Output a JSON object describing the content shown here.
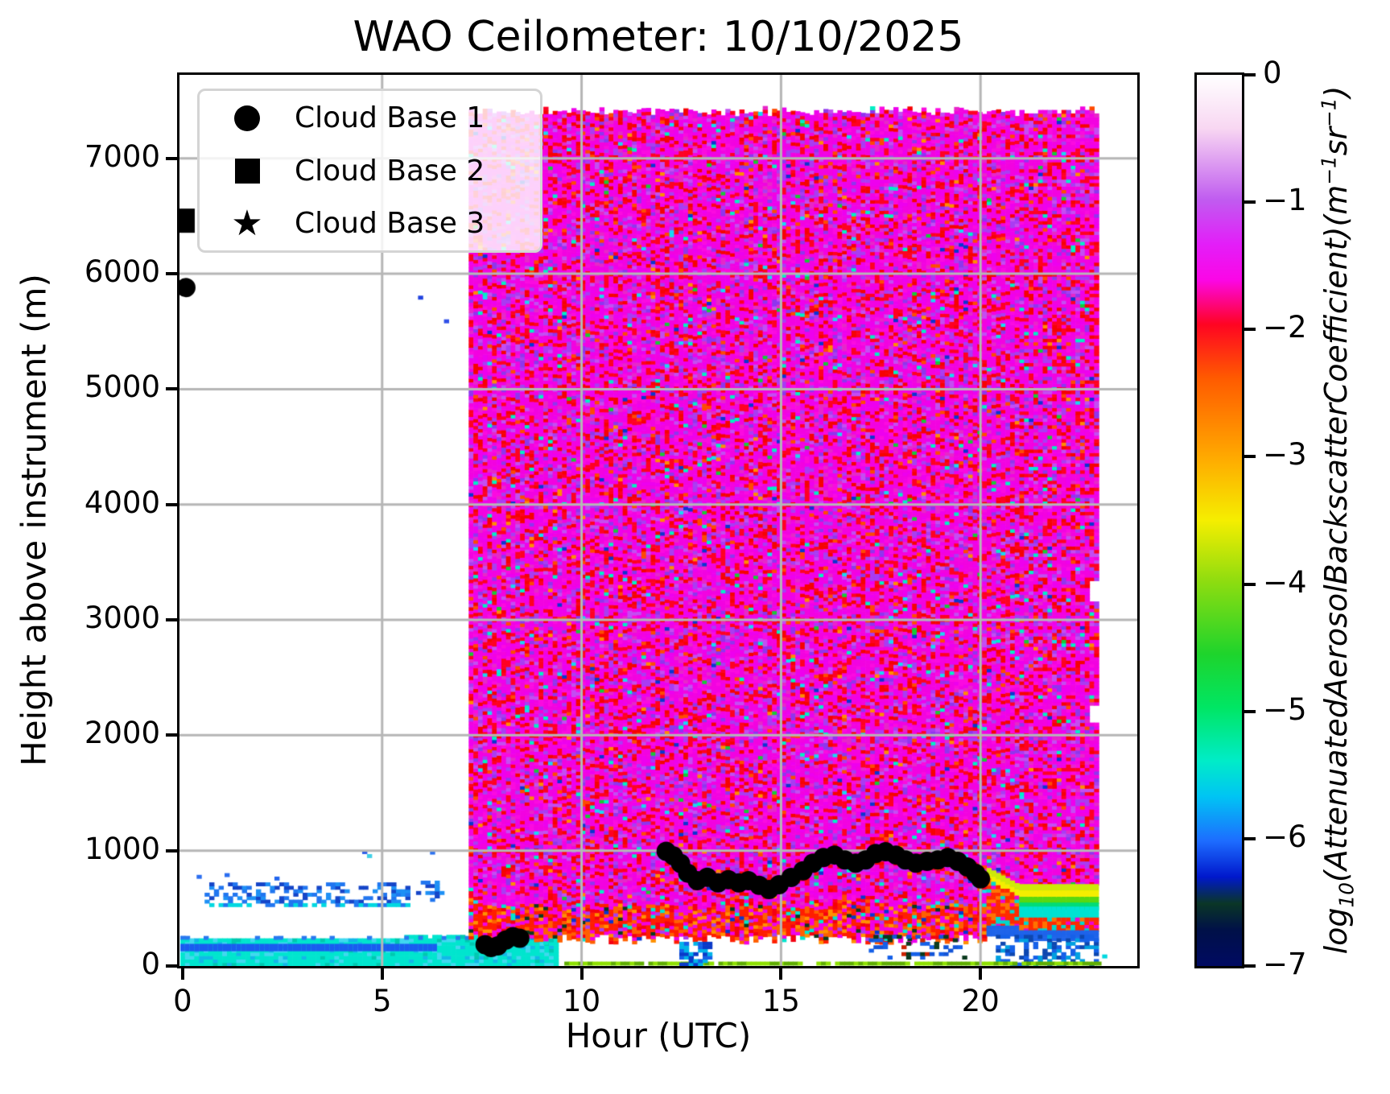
{
  "chart_data": {
    "type": "heatmap",
    "title": "WAO Ceilometer: 10/10/2025",
    "axes": {
      "xlabel": "Hour (UTC)",
      "ylabel": "Height above instrument (m)",
      "x_ticks": [
        0,
        5,
        10,
        15,
        20
      ],
      "y_ticks": [
        0,
        1000,
        2000,
        3000,
        4000,
        5000,
        6000,
        7000
      ],
      "xlim": [
        -0.08,
        23.93
      ],
      "ylim": [
        0,
        7724
      ],
      "grid": true,
      "grid_color": "#b6b6b6",
      "spine_color": "#000000"
    },
    "legend": {
      "position": "upper left",
      "star_glyph": "★",
      "items": [
        {
          "marker": "circle",
          "label": "Cloud Base 1"
        },
        {
          "marker": "square",
          "label": "Cloud Base 2"
        },
        {
          "marker": "star",
          "label": "Cloud Base 3"
        }
      ]
    },
    "colorbar": {
      "vmin": -7,
      "vmax": 0,
      "ticks": [
        "0",
        "−1",
        "−2",
        "−3",
        "−4",
        "−5",
        "−6",
        "−7"
      ],
      "tick_values": [
        0,
        -1,
        -2,
        -3,
        -4,
        -5,
        -6,
        -7
      ],
      "gradient": [
        [
          "0%",
          "#ffffff"
        ],
        [
          "6%",
          "#f8d7f2"
        ],
        [
          "14%",
          "#c05cf0"
        ],
        [
          "19%",
          "#e31ef8"
        ],
        [
          "23%",
          "#fb06e6"
        ],
        [
          "28%",
          "#ff0422"
        ],
        [
          "34%",
          "#ff5a00"
        ],
        [
          "43%",
          "#ffaa00"
        ],
        [
          "50%",
          "#f5ee00"
        ],
        [
          "57%",
          "#8cdc10"
        ],
        [
          "65%",
          "#1ed42c"
        ],
        [
          "71%",
          "#00e664"
        ],
        [
          "77%",
          "#00ecc8"
        ],
        [
          "81%",
          "#00c4f4"
        ],
        [
          "86%",
          "#1d6cff"
        ],
        [
          "90%",
          "#0018cc"
        ],
        [
          "93%",
          "#0a3626"
        ],
        [
          "96%",
          "#001048"
        ],
        [
          "100%",
          "#000a62"
        ]
      ],
      "label_parts": {
        "p1": "log",
        "sub": "10",
        "p2": "(AttenuatedAerosolBackscatterCoefficient)(m",
        "sup1": "−1",
        "p3": "sr",
        "sup2": "−1",
        "p4": ")"
      }
    },
    "heatmap": {
      "cell_w_hours": 0.117,
      "cell_h_m": 30,
      "main_block": {
        "hour_start": 7.17,
        "hour_end": 22.92,
        "m_bottom": 200,
        "m_top": 7430,
        "lower_zone_top_m": 520,
        "right_notches": [
          {
            "m": [
              2090,
              2240
            ],
            "hour_end": 22.62
          },
          {
            "m": [
              3150,
              3320
            ],
            "hour_end": 22.62
          }
        ],
        "palette_upper": [
          [
            "#f203e0",
            0.3
          ],
          [
            "#ee00ee",
            0.14
          ],
          [
            "#fb0ae0",
            0.08
          ],
          [
            "#ff0022",
            0.13
          ],
          [
            "#f60202",
            0.08
          ],
          [
            "#a93cf2",
            0.07
          ],
          [
            "#c44df2",
            0.05
          ],
          [
            "#8f35ee",
            0.04
          ],
          [
            "#e727c8",
            0.045
          ],
          [
            "#ff4a00",
            0.02
          ],
          [
            "#00efc4",
            0.012
          ],
          [
            "#19d8f2",
            0.005
          ],
          [
            "#0a35d0",
            0.004
          ],
          [
            "#19c837",
            0.004
          ],
          [
            "#ff8c00",
            0.006
          ]
        ],
        "palette_lower": [
          [
            "#ff1e00",
            0.3
          ],
          [
            "#ff5f00",
            0.16
          ],
          [
            "#ff9000",
            0.07
          ],
          [
            "#f203e0",
            0.17
          ],
          [
            "#ee00ee",
            0.06
          ],
          [
            "#a93cf2",
            0.05
          ],
          [
            "#f40012",
            0.1
          ],
          [
            "#00e5cf",
            0.05
          ],
          [
            "#0a35d0",
            0.02
          ],
          [
            "#0a3a1e",
            0.02
          ]
        ]
      },
      "aerosol_layers": {
        "hour_start": 20.15,
        "hour_end": 22.92,
        "slope_start_m": 840,
        "flat_m": 700,
        "slope_end_hour": 20.9,
        "bands": [
          {
            "depth": 50,
            "color": "#cde80a"
          },
          {
            "depth": 55,
            "color": "#f4ee00"
          },
          {
            "depth": 55,
            "color": "#58d810"
          },
          {
            "depth": 50,
            "color": "#00dc78"
          },
          {
            "depth": 95,
            "color": "#00e2d2"
          },
          {
            "depth": 95,
            "palette": [
              [
                "#ff2a00",
                0.5
              ],
              [
                "#ff7300",
                0.2
              ],
              [
                "#f000d0",
                0.15
              ],
              [
                "#00d8cc",
                0.15
              ]
            ]
          },
          {
            "depth": 80,
            "color": "#1e63ea"
          }
        ],
        "lower_patches": {
          "hour_start": 20.3,
          "m_top": 255,
          "density": 0.48,
          "colors": [
            "#1560e8",
            "#0d47b0",
            "#00a0e0"
          ]
        }
      },
      "ground_band": {
        "hour_end": 9.4,
        "m_top": 230,
        "colors": [
          [
            "#00e5ce",
            0.72
          ],
          [
            "#40d8f0",
            0.14
          ],
          [
            "#12b8e8",
            0.08
          ],
          [
            "#00c8b0",
            0.06
          ]
        ],
        "blue_line": {
          "hour_end": 6.35,
          "m": [
            132,
            168
          ],
          "color": "#1a5cf0"
        },
        "top_dashes": {
          "m": [
            230,
            262
          ],
          "density": 0.3,
          "color": "#2979f0"
        }
      },
      "mid_blue_layer": {
        "hour": [
          0.55,
          5.6
        ],
        "m": [
          545,
          700
        ],
        "density": 0.45,
        "colors": [
          "#2176f0",
          "#1e90f5",
          "#1545c8"
        ],
        "bottom_dashes": {
          "m": [
            515,
            545
          ],
          "density": 0.5,
          "colors": [
            "#00d8e0",
            "#2176f0"
          ]
        },
        "extra_cluster": {
          "hour": [
            5.85,
            6.5
          ],
          "m": [
            560,
            760
          ],
          "density": 0.35
        }
      },
      "blue_columns": {
        "hour": [
          12.45,
          13.2
        ],
        "m": [
          0,
          195
        ],
        "density": 0.7,
        "colors": [
          "#1560e8",
          "#0a3ac8",
          "#00b4e8"
        ]
      },
      "sparse_patches": {
        "hour": [
          17.2,
          19.65
        ],
        "m": [
          60,
          260
        ],
        "density": 0.28,
        "colors": [
          "#1355d8",
          "#0a3a1e",
          "#cc2200",
          "#1560e8"
        ]
      },
      "ground_line": {
        "hour": [
          9.45,
          22.92
        ],
        "m": [
          8,
          38
        ],
        "density": 0.92,
        "colors": [
          "#8ee000",
          "#5fae00"
        ]
      },
      "specks": [
        [
          0.35,
          760,
          "#2b6ef0"
        ],
        [
          1.05,
          775,
          "#2b6ef0"
        ],
        [
          2.3,
          745,
          "#2266ee"
        ],
        [
          4.5,
          975,
          "#2255e8"
        ],
        [
          4.62,
          940,
          "#3fd0e8"
        ],
        [
          5.9,
          5780,
          "#2244e0"
        ],
        [
          6.2,
          970,
          "#2a70f0"
        ],
        [
          6.55,
          5575,
          "#3050e8"
        ],
        [
          23.05,
          70,
          "#00d8e0"
        ]
      ]
    },
    "markers": {
      "radius_px": 12,
      "square_size_px": 30,
      "cloud_base_1": [
        [
          7.58,
          185
        ],
        [
          7.73,
          160
        ],
        [
          7.9,
          175
        ],
        [
          8.1,
          225
        ],
        [
          8.28,
          255
        ],
        [
          8.45,
          240
        ],
        [
          0.08,
          5880
        ],
        [
          12.12,
          995
        ],
        [
          12.3,
          955
        ],
        [
          12.48,
          890
        ],
        [
          12.66,
          805
        ],
        [
          12.9,
          740
        ],
        [
          13.15,
          770
        ],
        [
          13.42,
          720
        ],
        [
          13.68,
          748
        ],
        [
          13.94,
          720
        ],
        [
          14.18,
          740
        ],
        [
          14.45,
          700
        ],
        [
          14.7,
          662
        ],
        [
          14.95,
          705
        ],
        [
          15.25,
          768
        ],
        [
          15.55,
          825
        ],
        [
          15.8,
          892
        ],
        [
          16.06,
          940
        ],
        [
          16.34,
          962
        ],
        [
          16.6,
          920
        ],
        [
          16.87,
          892
        ],
        [
          17.12,
          920
        ],
        [
          17.37,
          975
        ],
        [
          17.62,
          990
        ],
        [
          17.88,
          962
        ],
        [
          18.12,
          920
        ],
        [
          18.38,
          892
        ],
        [
          18.66,
          907
        ],
        [
          18.93,
          920
        ],
        [
          19.18,
          940
        ],
        [
          19.43,
          907
        ],
        [
          19.67,
          858
        ],
        [
          19.88,
          803
        ],
        [
          20.0,
          755
        ]
      ],
      "cloud_base_2": [
        [
          0.0,
          6460
        ]
      ],
      "cloud_base_3": []
    }
  }
}
